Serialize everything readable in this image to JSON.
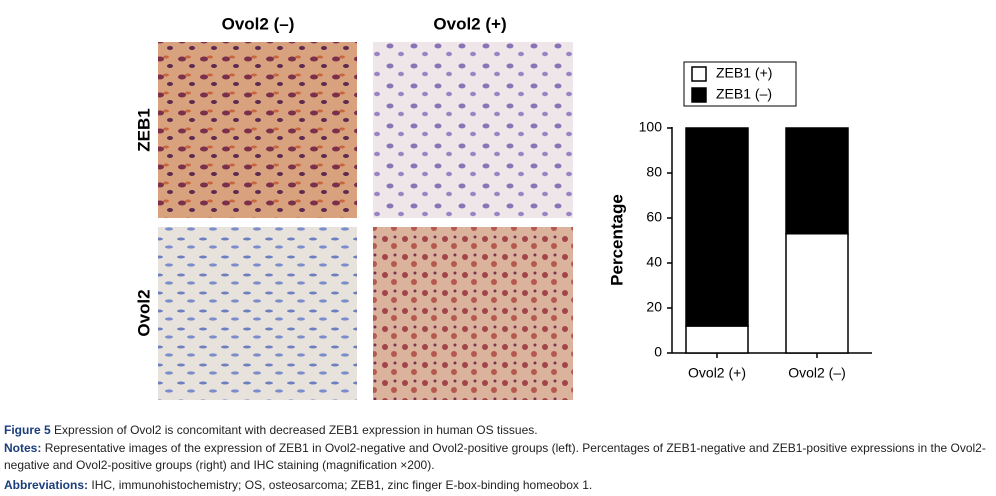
{
  "panels": {
    "column_labels": [
      "Ovol2 (–)",
      "Ovol2 (+)"
    ],
    "row_labels": [
      "ZEB1",
      "Ovol2"
    ]
  },
  "chart_data": {
    "type": "stacked_bar",
    "categories": [
      "Ovol2 (+)",
      "Ovol2 (–)"
    ],
    "series": [
      {
        "name": "ZEB1 (+)",
        "color": "#ffffff",
        "values": [
          12,
          53
        ]
      },
      {
        "name": "ZEB1 (–)",
        "color": "#000000",
        "values": [
          88,
          47
        ]
      }
    ],
    "ylabel": "Percentage",
    "ylim": [
      0,
      100
    ],
    "yticks": [
      0,
      20,
      40,
      60,
      80,
      100
    ]
  },
  "caption": {
    "label": "Figure 5",
    "text": "Expression of Ovol2 is concomitant with decreased ZEB1 expression in human OS tissues."
  },
  "notes": {
    "label": "Notes:",
    "text": "Representative images of the expression of ZEB1 in Ovol2-negative and Ovol2-positive groups (left). Percentages of ZEB1-negative and ZEB1-positive expressions in the Ovol2-negative and Ovol2-positive groups (right) and IHC staining (magnification ×200)."
  },
  "abbreviations": {
    "label": "Abbreviations:",
    "text": "IHC, immunohistochemistry; OS, osteosarcoma; ZEB1, zinc finger E-box-binding homeobox 1."
  }
}
